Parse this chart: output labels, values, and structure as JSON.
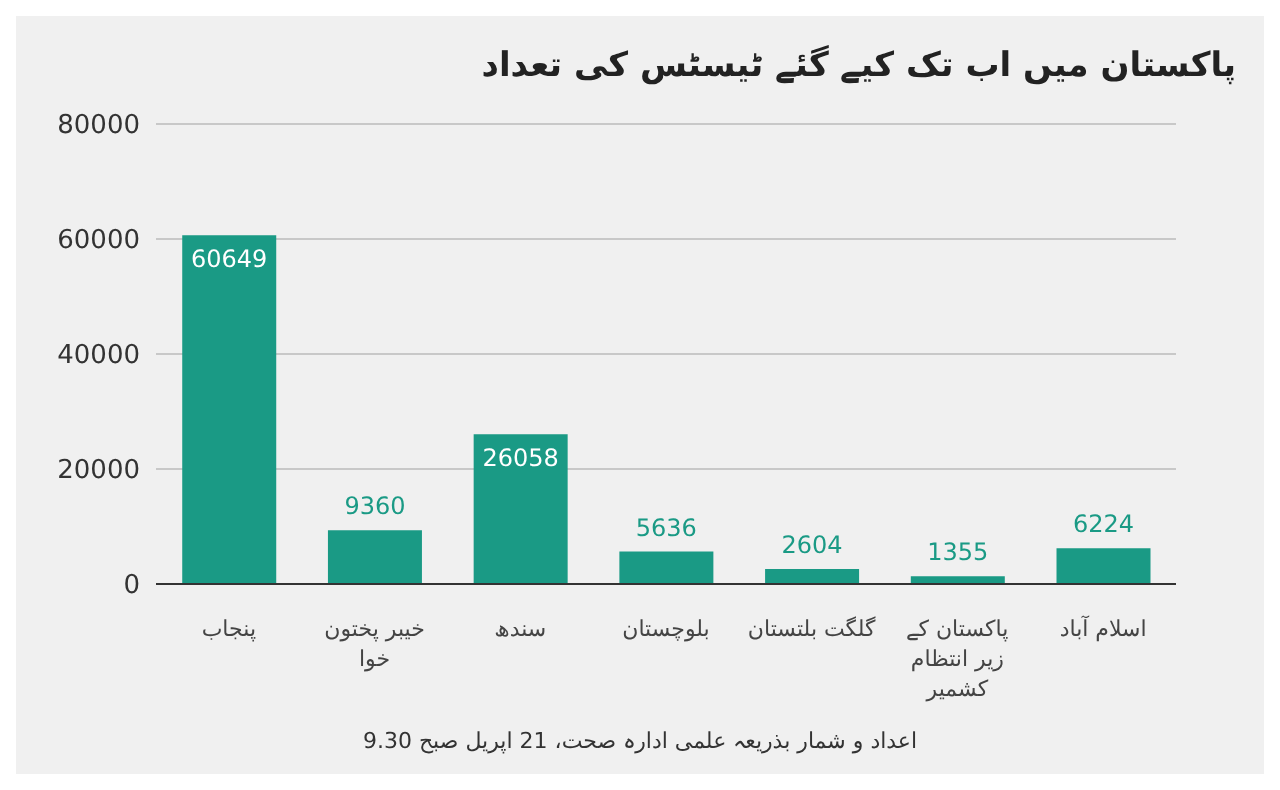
{
  "chart_data": {
    "type": "bar",
    "title": "پاکستان میں اب تک کیے گئے ٹیسٹس کی تعداد",
    "categories": [
      "پنجاب",
      "خیبر پختون خوا",
      "سندھ",
      "بلوچستان",
      "گلگت بلتستان",
      "پاکستان کے زیر انتظام کشمیر",
      "اسلام آباد"
    ],
    "values": [
      60649,
      9360,
      26058,
      5636,
      2604,
      1355,
      6224
    ],
    "color": "#1a9a85",
    "ylim": [
      0,
      80000
    ],
    "yticks": [
      0,
      20000,
      40000,
      60000,
      80000
    ],
    "grid": "y",
    "data_labels": true,
    "annotations": [
      "اعداد و شمار بذریعہ علمی ادارہ صحت، 21 اپریل صبح 9.30"
    ]
  }
}
